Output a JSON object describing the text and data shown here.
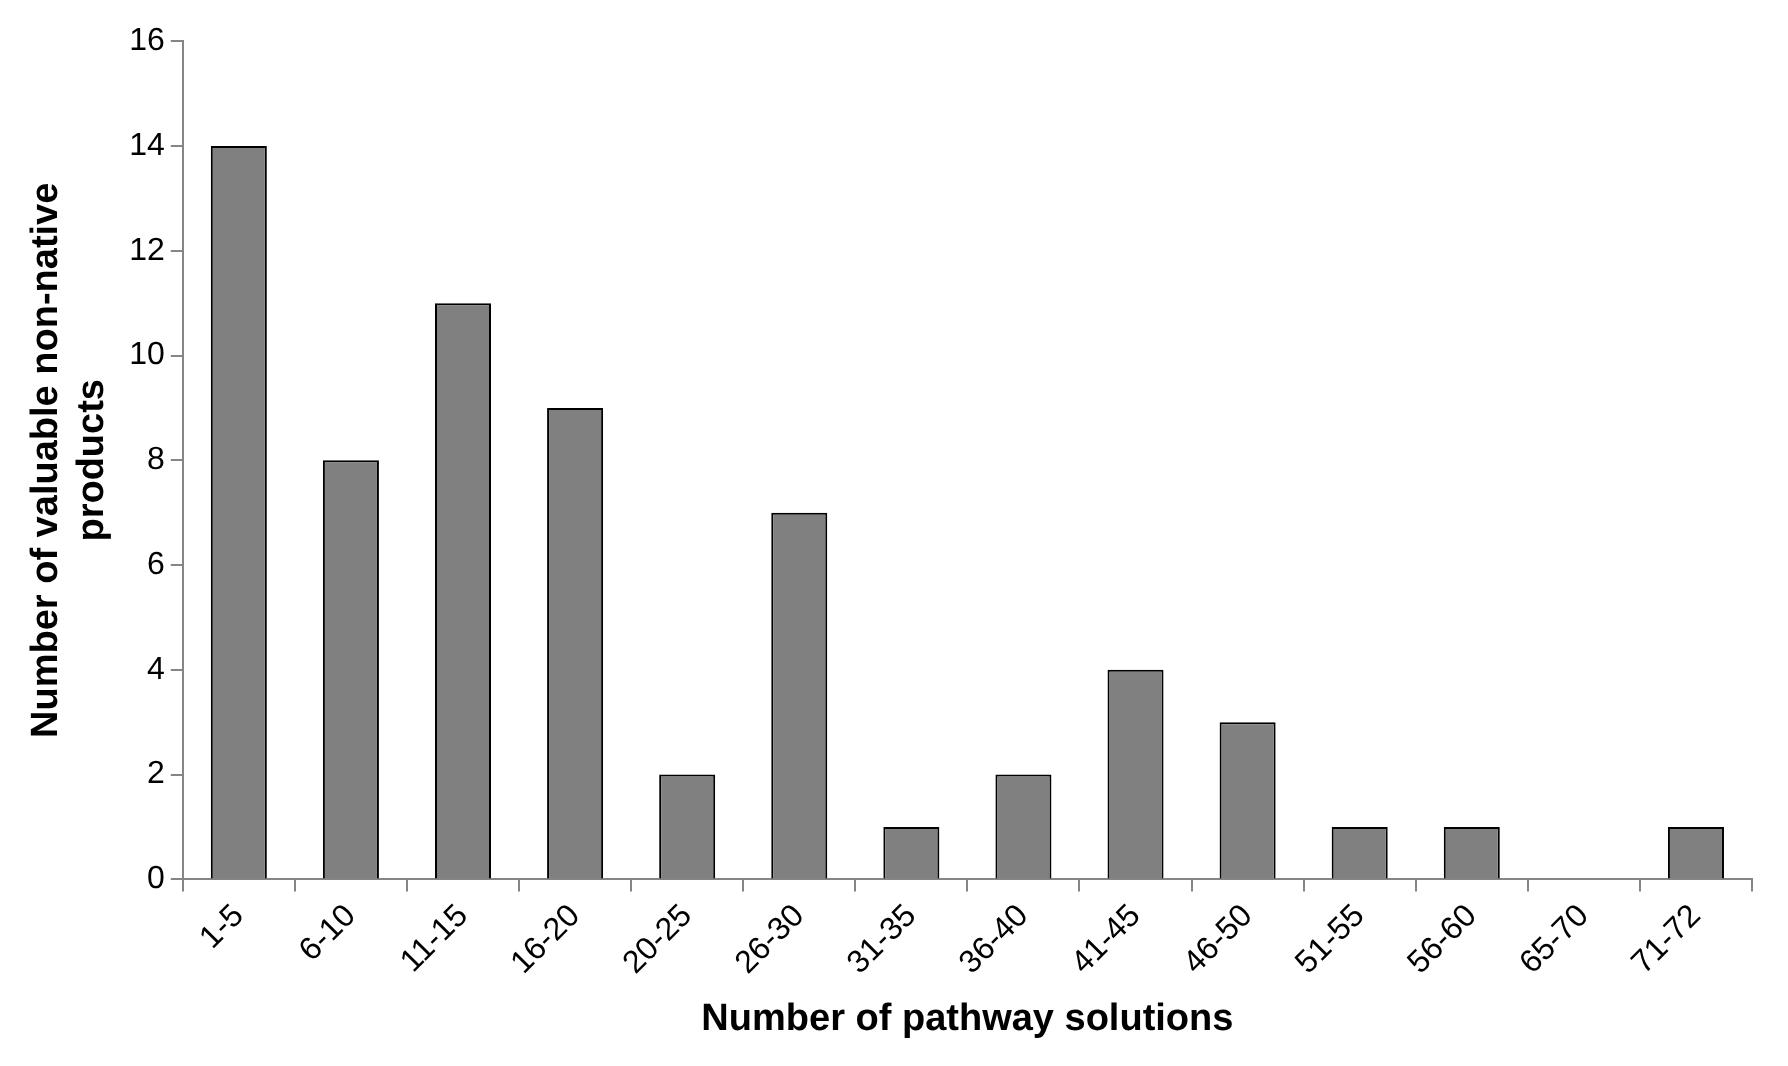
{
  "chart_data": {
    "type": "bar",
    "xlabel": "Number of pathway solutions",
    "ylabel": "Number of valuable non-native products",
    "categories": [
      "1-5",
      "6-10",
      "11-15",
      "16-20",
      "20-25",
      "26-30",
      "31-35",
      "36-40",
      "41-45",
      "46-50",
      "51-55",
      "56-60",
      "65-70",
      "71-72"
    ],
    "values": [
      14,
      8,
      11,
      9,
      2,
      7,
      1,
      2,
      4,
      3,
      1,
      1,
      0,
      1
    ],
    "color": "#808080",
    "ylim": [
      0,
      16
    ],
    "yticks": [
      0,
      2,
      4,
      6,
      8,
      10,
      12,
      14,
      16
    ],
    "grid": false,
    "legend": false
  }
}
